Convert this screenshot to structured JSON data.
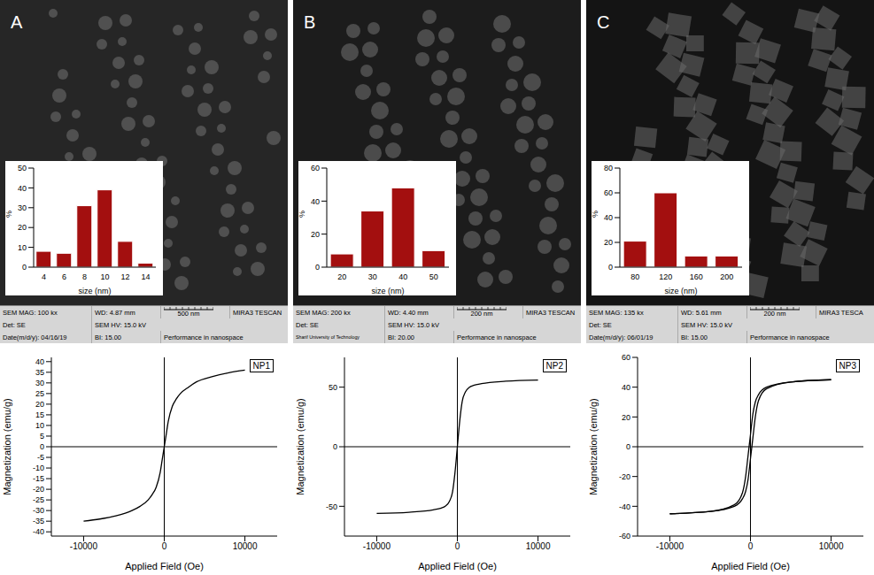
{
  "chart_data": [
    {
      "type": "bar",
      "panel": "A",
      "categories": [
        "4",
        "6",
        "8",
        "10",
        "12",
        "14"
      ],
      "values": [
        8,
        7,
        31,
        39,
        13,
        2
      ],
      "color": "#a30f0f",
      "x_label": "size (nm)",
      "y_label": "%",
      "ylim": [
        0,
        50
      ],
      "yticks": [
        0,
        10,
        20,
        30,
        40,
        50
      ],
      "grid": false,
      "annotations": [
        [
          "SEM MAG: 100 kx",
          "WD: 4.87 mm",
          "500 nm",
          "MIRA3 TESCAN"
        ],
        [
          "Det: SE",
          "SEM HV: 15.0 kV"
        ],
        [
          "Date(m/d/y): 04/16/19",
          "BI: 15.00",
          "Performance in nanospace"
        ]
      ]
    },
    {
      "type": "bar",
      "panel": "B",
      "categories": [
        "20",
        "30",
        "40",
        "50"
      ],
      "values": [
        8,
        34,
        48,
        10
      ],
      "color": "#a30f0f",
      "x_label": "size (nm)",
      "y_label": "%",
      "ylim": [
        0,
        60
      ],
      "yticks": [
        0,
        20,
        40,
        60
      ],
      "grid": false,
      "annotations": [
        [
          "SEM MAG: 200 kx",
          "WD: 4.40 mm",
          "200 nm",
          "MIRA3 TESCAN"
        ],
        [
          "Det: SE",
          "SEM HV: 15.0 kV"
        ],
        [
          "Sharif University of Technology",
          "BI: 20.00",
          "Performance in nanospace"
        ]
      ]
    },
    {
      "type": "bar",
      "panel": "C",
      "categories": [
        "80",
        "120",
        "160",
        "200"
      ],
      "values": [
        21,
        60,
        9,
        9
      ],
      "color": "#a30f0f",
      "x_label": "size (nm)",
      "y_label": "%",
      "ylim": [
        0,
        80
      ],
      "yticks": [
        0,
        20,
        40,
        60,
        80
      ],
      "grid": false,
      "annotations": [
        [
          "SEM MAG: 135 kx",
          "WD: 5.61 mm",
          "200 nm",
          "MIRA3 TESCA"
        ],
        [
          "Det: SE",
          "SEM HV: 15.0 kV"
        ],
        [
          "Date(m/d/y): 06/01/19",
          "BI: 15.00",
          "Performance in nanospace"
        ]
      ]
    },
    {
      "type": "line",
      "title": "NP1",
      "x_label": "Applied Field (Oe)",
      "y_label": "Magnetization (emu/g)",
      "xlim": [
        -14000,
        14000
      ],
      "xticks": [
        -10000,
        0,
        10000
      ],
      "ylim": [
        -42,
        42
      ],
      "yticks": [
        -40,
        -35,
        -30,
        -25,
        -20,
        -15,
        -10,
        -5,
        0,
        5,
        10,
        15,
        20,
        25,
        30,
        35,
        40
      ],
      "grid": false,
      "series": [
        {
          "color": "#000000",
          "x": [
            -10000,
            -8000,
            -6000,
            -4000,
            -3000,
            -2000,
            -1500,
            -1000,
            -500,
            -250,
            0,
            250,
            500,
            1000,
            1500,
            2000,
            3000,
            4000,
            6000,
            8000,
            10000
          ],
          "values": [
            -35,
            -34,
            -32.5,
            -30,
            -28,
            -25,
            -22.5,
            -19,
            -12,
            -6,
            0,
            6,
            12,
            19,
            22.5,
            25,
            28,
            30.5,
            33,
            34.8,
            36
          ]
        }
      ]
    },
    {
      "type": "line",
      "title": "NP2",
      "x_label": "Applied Field (Oe)",
      "y_label": "Magnetization (emu/g)",
      "xlim": [
        -14000,
        14000
      ],
      "xticks": [
        -10000,
        0,
        10000
      ],
      "ylim": [
        -75,
        75
      ],
      "yticks": [
        -50,
        0,
        50
      ],
      "grid": false,
      "series": [
        {
          "color": "#000000",
          "x": [
            -10000,
            -6000,
            -3000,
            -2000,
            -1500,
            -1000,
            -600,
            -300,
            0,
            300,
            600,
            1000,
            1500,
            2000,
            3000,
            6000,
            10000
          ],
          "values": [
            -56,
            -55,
            -53,
            -51.5,
            -50,
            -46,
            -38,
            -22,
            0,
            22,
            38,
            46,
            50,
            51.5,
            53,
            55,
            56
          ]
        }
      ]
    },
    {
      "type": "line",
      "title": "NP3",
      "x_label": "Applied Field (Oe)",
      "y_label": "Magnetization (emu/g)",
      "xlim": [
        -14000,
        14000
      ],
      "xticks": [
        -10000,
        0,
        10000
      ],
      "ylim": [
        -60,
        60
      ],
      "yticks": [
        -60,
        -40,
        -20,
        0,
        20,
        40,
        60
      ],
      "grid": false,
      "series": [
        {
          "color": "#000000",
          "x": [
            -10000,
            -5000,
            -2000,
            -1000,
            -600,
            -300,
            0,
            300,
            600,
            1000,
            2000,
            5000,
            10000
          ],
          "values": [
            -45,
            -43.5,
            -39,
            -31,
            -20,
            -6,
            8,
            22,
            30,
            35,
            40,
            43.5,
            45
          ]
        },
        {
          "color": "#000000",
          "x": [
            -10000,
            -5000,
            -2000,
            -1000,
            -600,
            -300,
            0,
            300,
            600,
            1000,
            2000,
            5000,
            10000
          ],
          "values": [
            -45,
            -43.5,
            -40,
            -35,
            -30,
            -22,
            -8,
            6,
            20,
            31,
            39,
            43.5,
            45
          ]
        }
      ]
    }
  ]
}
